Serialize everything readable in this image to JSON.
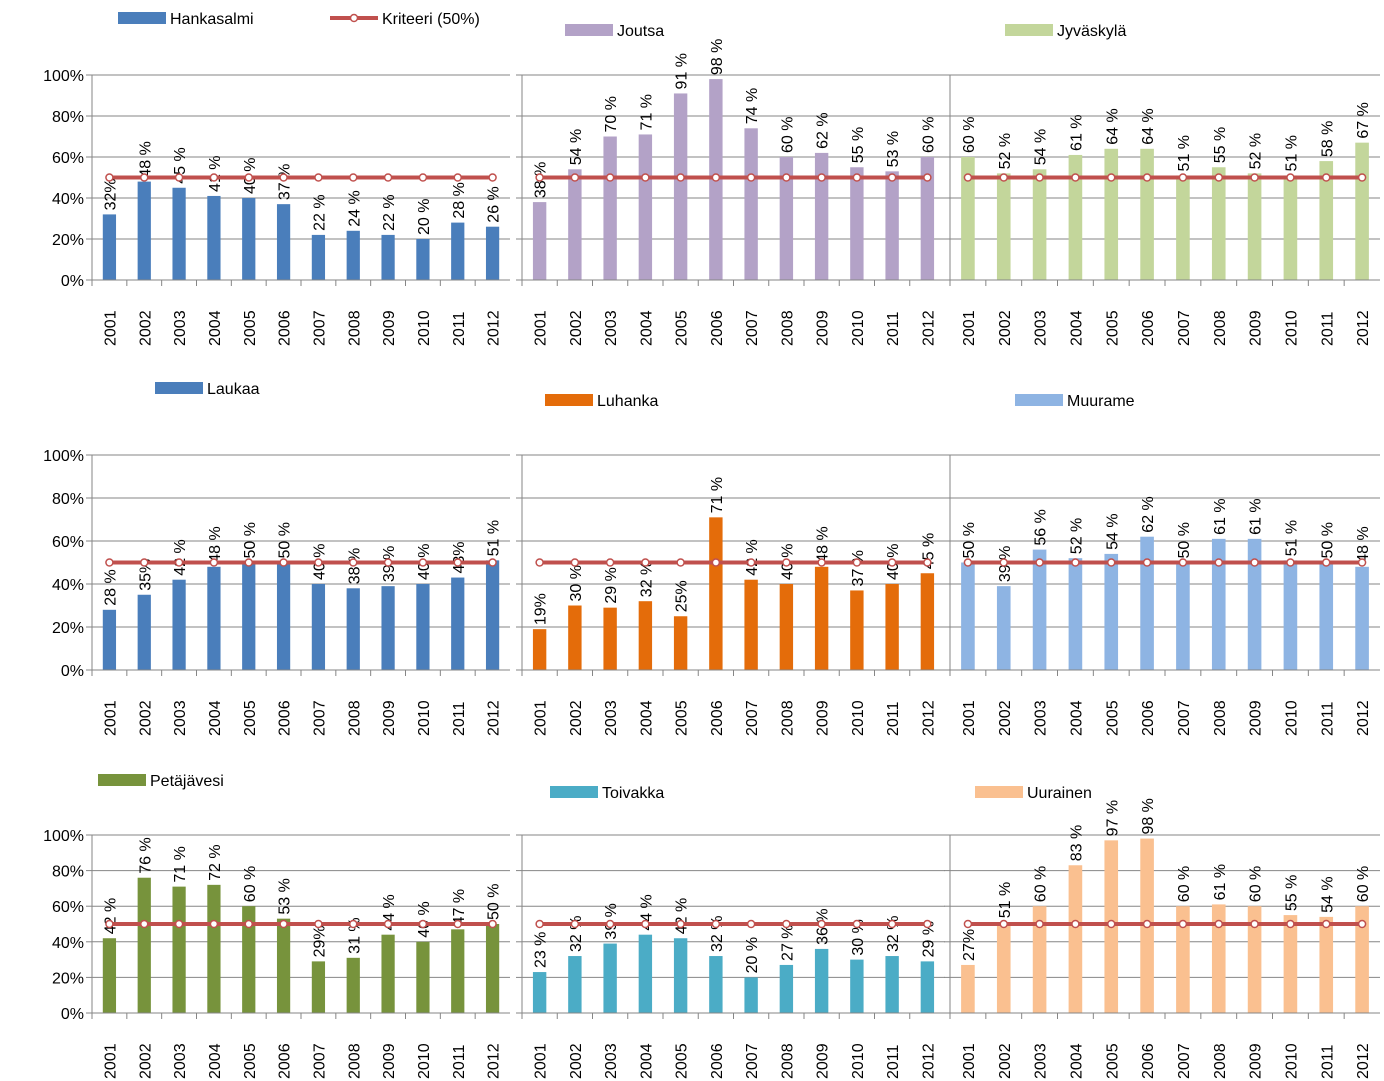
{
  "chart_data": [
    {
      "type": "bar",
      "categories": [
        "2001",
        "2002",
        "2003",
        "2004",
        "2005",
        "2006",
        "2007",
        "2008",
        "2009",
        "2010",
        "2011",
        "2012"
      ],
      "series": [
        {
          "name": "Hankasalmi",
          "color": "#4a7ebb",
          "values": [
            32,
            48,
            45,
            41,
            40,
            37,
            22,
            24,
            22,
            20,
            28,
            26
          ],
          "value_labels": [
            "32%",
            "48 %",
            "45 %",
            "41 %",
            "40 %",
            "37 %",
            "22 %",
            "24 %",
            "22 %",
            "20 %",
            "28 %",
            "26 %"
          ]
        },
        {
          "name": "Kriteeri (50%)",
          "type": "line",
          "color": "#c0504d",
          "values": [
            50,
            50,
            50,
            50,
            50,
            50,
            50,
            50,
            50,
            50,
            50,
            50
          ]
        }
      ],
      "ylim": [
        0,
        100
      ],
      "yticks": [
        {
          "value": 0,
          "label": "0%"
        },
        {
          "value": 20,
          "label": "20%"
        },
        {
          "value": 40,
          "label": "40%"
        },
        {
          "value": 60,
          "label": "60%"
        },
        {
          "value": 80,
          "label": "80%"
        },
        {
          "value": 100,
          "label": "100%"
        }
      ],
      "grid": true
    },
    {
      "type": "bar",
      "categories": [
        "2001",
        "2002",
        "2003",
        "2004",
        "2005",
        "2006",
        "2007",
        "2008",
        "2009",
        "2010",
        "2011",
        "2012"
      ],
      "series": [
        {
          "name": "Joutsa",
          "color": "#b3a2c7",
          "values": [
            38,
            54,
            70,
            71,
            91,
            98,
            74,
            60,
            62,
            55,
            53,
            60
          ],
          "value_labels": [
            "38 %",
            "54 %",
            "70 %",
            "71 %",
            "91 %",
            "98 %",
            "74 %",
            "60 %",
            "62 %",
            "55 %",
            "53 %",
            "60 %"
          ]
        },
        {
          "type": "line",
          "color": "#c0504d",
          "values": [
            50,
            50,
            50,
            50,
            50,
            50,
            50,
            50,
            50,
            50,
            50,
            50
          ]
        }
      ],
      "ylim": [
        0,
        100
      ],
      "yticks": [
        0,
        20,
        40,
        60,
        80,
        100
      ],
      "tick_labels": false,
      "grid": true
    },
    {
      "type": "bar",
      "categories": [
        "2001",
        "2002",
        "2003",
        "2004",
        "2005",
        "2006",
        "2007",
        "2008",
        "2009",
        "2010",
        "2011",
        "2012"
      ],
      "series": [
        {
          "name": "Jyväskylä",
          "color": "#c3d69b",
          "values": [
            60,
            52,
            54,
            61,
            64,
            64,
            51,
            55,
            52,
            51,
            58,
            67
          ],
          "value_labels": [
            "60 %",
            "52 %",
            "54 %",
            "61 %",
            "64 %",
            "64 %",
            "51 %",
            "55 %",
            "52 %",
            "51 %",
            "58 %",
            "67 %"
          ]
        },
        {
          "type": "line",
          "color": "#c0504d",
          "values": [
            50,
            50,
            50,
            50,
            50,
            50,
            50,
            50,
            50,
            50,
            50,
            50
          ]
        }
      ],
      "ylim": [
        0,
        100
      ],
      "yticks": [
        0,
        20,
        40,
        60,
        80,
        100
      ],
      "tick_labels": false,
      "grid": true
    },
    {
      "type": "bar",
      "categories": [
        "2001",
        "2002",
        "2003",
        "2004",
        "2005",
        "2006",
        "2007",
        "2008",
        "2009",
        "2010",
        "2011",
        "2012"
      ],
      "series": [
        {
          "name": "Laukaa",
          "color": "#4a7ebb",
          "values": [
            28,
            35,
            42,
            48,
            50,
            50,
            40,
            38,
            39,
            40,
            43,
            51
          ],
          "value_labels": [
            "28 %",
            "35%",
            "42 %",
            "48 %",
            "50 %",
            "50 %",
            "40 %",
            "38 %",
            "39 %",
            "40 %",
            "43%",
            "51 %"
          ]
        },
        {
          "type": "line",
          "color": "#c0504d",
          "values": [
            50,
            50,
            50,
            50,
            50,
            50,
            50,
            50,
            50,
            50,
            50,
            50
          ]
        }
      ],
      "ylim": [
        0,
        100
      ],
      "yticks": [
        {
          "value": 0,
          "label": "0%"
        },
        {
          "value": 20,
          "label": "20%"
        },
        {
          "value": 40,
          "label": "40%"
        },
        {
          "value": 60,
          "label": "60%"
        },
        {
          "value": 80,
          "label": "80%"
        },
        {
          "value": 100,
          "label": "100%"
        }
      ],
      "grid": true
    },
    {
      "type": "bar",
      "categories": [
        "2001",
        "2002",
        "2003",
        "2004",
        "2005",
        "2006",
        "2007",
        "2008",
        "2009",
        "2010",
        "2011",
        "2012"
      ],
      "series": [
        {
          "name": "Luhanka",
          "color": "#e46c0a",
          "values": [
            19,
            30,
            29,
            32,
            25,
            71,
            42,
            40,
            48,
            37,
            40,
            45
          ],
          "value_labels": [
            "19%",
            "30 %",
            "29 %",
            "32 %",
            "25%",
            "71 %",
            "42 %",
            "40 %",
            "48 %",
            "37 %",
            "40 %",
            "45 %"
          ]
        },
        {
          "type": "line",
          "color": "#c0504d",
          "values": [
            50,
            50,
            50,
            50,
            50,
            50,
            50,
            50,
            50,
            50,
            50,
            50
          ]
        }
      ],
      "ylim": [
        0,
        100
      ],
      "yticks": [
        0,
        20,
        40,
        60,
        80,
        100
      ],
      "tick_labels": false,
      "grid": true
    },
    {
      "type": "bar",
      "categories": [
        "2001",
        "2002",
        "2003",
        "2004",
        "2005",
        "2006",
        "2007",
        "2008",
        "2009",
        "2010",
        "2011",
        "2012"
      ],
      "series": [
        {
          "name": "Muurame",
          "color": "#8eb4e3",
          "values": [
            50,
            39,
            56,
            52,
            54,
            62,
            50,
            61,
            61,
            51,
            50,
            48
          ],
          "value_labels": [
            "50 %",
            "39 %",
            "56 %",
            "52 %",
            "54 %",
            "62 %",
            "50 %",
            "61 %",
            "61 %",
            "51 %",
            "50 %",
            "48 %"
          ]
        },
        {
          "type": "line",
          "color": "#c0504d",
          "values": [
            50,
            50,
            50,
            50,
            50,
            50,
            50,
            50,
            50,
            50,
            50,
            50
          ]
        }
      ],
      "ylim": [
        0,
        100
      ],
      "yticks": [
        0,
        20,
        40,
        60,
        80,
        100
      ],
      "tick_labels": false,
      "grid": true
    },
    {
      "type": "bar",
      "categories": [
        "2001",
        "2002",
        "2003",
        "2004",
        "2005",
        "2006",
        "2007",
        "2008",
        "2009",
        "2010",
        "2011",
        "2012"
      ],
      "series": [
        {
          "name": "Petäjävesi",
          "color": "#77933c",
          "values": [
            42,
            76,
            71,
            72,
            60,
            53,
            29,
            31,
            44,
            40,
            47,
            50
          ],
          "value_labels": [
            "42 %",
            "76 %",
            "71 %",
            "72 %",
            "60 %",
            "53 %",
            "29%",
            "31 %",
            "44 %",
            "40 %",
            "47 %",
            "50 %"
          ]
        },
        {
          "type": "line",
          "color": "#c0504d",
          "values": [
            50,
            50,
            50,
            50,
            50,
            50,
            50,
            50,
            50,
            50,
            50,
            50
          ]
        }
      ],
      "ylim": [
        0,
        100
      ],
      "yticks": [
        {
          "value": 0,
          "label": "0%"
        },
        {
          "value": 20,
          "label": "20%"
        },
        {
          "value": 40,
          "label": "40%"
        },
        {
          "value": 60,
          "label": "60%"
        },
        {
          "value": 80,
          "label": "80%"
        },
        {
          "value": 100,
          "label": "100%"
        }
      ],
      "grid": true
    },
    {
      "type": "bar",
      "categories": [
        "2001",
        "2002",
        "2003",
        "2004",
        "2005",
        "2006",
        "2007",
        "2008",
        "2009",
        "2010",
        "2011",
        "2012"
      ],
      "series": [
        {
          "name": "Toivakka",
          "color": "#4bacc6",
          "values": [
            23,
            32,
            39,
            44,
            42,
            32,
            20,
            27,
            36,
            30,
            32,
            29
          ],
          "value_labels": [
            "23 %",
            "32 %",
            "39 %",
            "44 %",
            "42 %",
            "32 %",
            "20 %",
            "27 %",
            "36 %",
            "30 %",
            "32 %",
            "29 %"
          ]
        },
        {
          "type": "line",
          "color": "#c0504d",
          "values": [
            50,
            50,
            50,
            50,
            50,
            50,
            50,
            50,
            50,
            50,
            50,
            50
          ]
        }
      ],
      "ylim": [
        0,
        100
      ],
      "yticks": [
        0,
        20,
        40,
        60,
        80,
        100
      ],
      "tick_labels": false,
      "grid": true
    },
    {
      "type": "bar",
      "categories": [
        "2001",
        "2002",
        "2003",
        "2004",
        "2005",
        "2006",
        "2007",
        "2008",
        "2009",
        "2010",
        "2011",
        "2012"
      ],
      "series": [
        {
          "name": "Uurainen",
          "color": "#fac090",
          "values": [
            27,
            51,
            60,
            83,
            97,
            98,
            60,
            61,
            60,
            55,
            54,
            60
          ],
          "value_labels": [
            "27%",
            "51 %",
            "60 %",
            "83 %",
            "97 %",
            "98 %",
            "60 %",
            "61 %",
            "60 %",
            "55 %",
            "54 %",
            "60 %"
          ]
        },
        {
          "type": "line",
          "color": "#c0504d",
          "values": [
            50,
            50,
            50,
            50,
            50,
            50,
            50,
            50,
            50,
            50,
            50,
            50
          ]
        }
      ],
      "ylim": [
        0,
        100
      ],
      "yticks": [
        0,
        20,
        40,
        60,
        80,
        100
      ],
      "tick_labels": false,
      "grid": true
    }
  ]
}
